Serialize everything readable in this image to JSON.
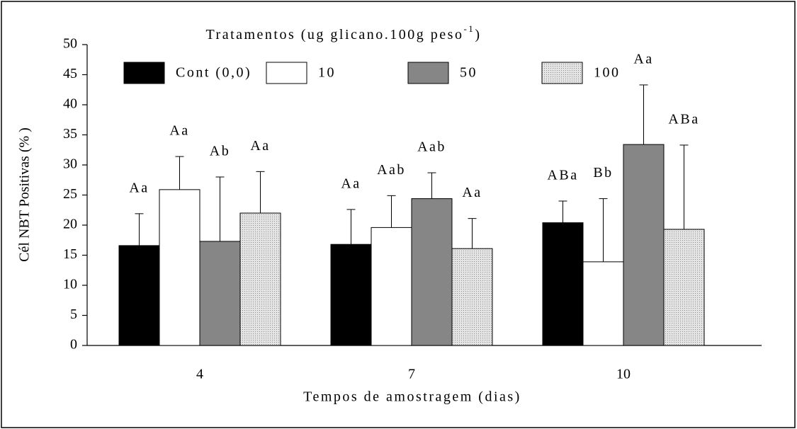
{
  "chart_data": {
    "type": "bar",
    "legend_title": {
      "text": "Tratamentos (ug glicano.100g peso",
      "superscript": "-1",
      "suffix": ")"
    },
    "xlabel": "Tempos de amostragem (dias)",
    "ylabel": "Cél NBT Positivas (% )",
    "categories": [
      "4",
      "7",
      "10"
    ],
    "ylim": [
      0,
      50
    ],
    "yticks": [
      0,
      5,
      10,
      15,
      20,
      25,
      30,
      35,
      40,
      45,
      50
    ],
    "series": [
      {
        "name": "Cont (0,0)",
        "color": "#000000",
        "values": [
          16.6,
          16.8,
          20.4
        ],
        "errors": [
          5.3,
          5.8,
          3.6
        ],
        "labels": [
          "Aa",
          "Aa",
          "ABa"
        ]
      },
      {
        "name": "10",
        "color": "#ffffff",
        "values": [
          25.9,
          19.6,
          13.9
        ],
        "errors": [
          5.5,
          5.3,
          10.5
        ],
        "labels": [
          "Aa",
          "Aab",
          "Bb"
        ]
      },
      {
        "name": "50",
        "color": "#868686",
        "values": [
          17.3,
          24.4,
          33.4
        ],
        "errors": [
          10.7,
          4.3,
          9.9
        ],
        "labels": [
          "Ab",
          "Aab",
          "Aa"
        ]
      },
      {
        "name": "100",
        "color": "#d4d4d4",
        "dotted": true,
        "values": [
          22.0,
          16.1,
          19.3
        ],
        "errors": [
          6.9,
          5.0,
          14.0
        ],
        "labels": [
          "Aa",
          "Aa",
          "ABa"
        ]
      }
    ]
  }
}
